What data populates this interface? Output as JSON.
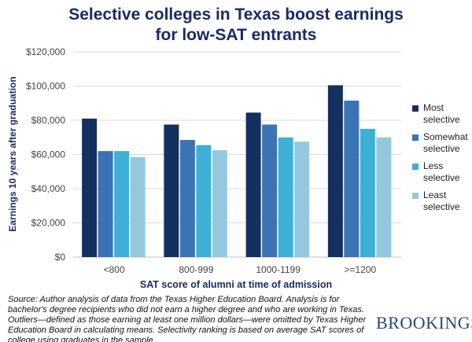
{
  "chart_data": {
    "type": "bar",
    "title": "Selective colleges in Texas boost earnings for low-SAT entrants",
    "y_label": "Earnings 10 years after graduation",
    "x_label": "SAT score of alumni at time of admission",
    "categories": [
      "<800",
      "800-999",
      "1000-1199",
      ">=1200"
    ],
    "series": [
      {
        "name": "Most selective",
        "color": "#14305f",
        "values": [
          81000,
          77500,
          84500,
          100500
        ]
      },
      {
        "name": "Somewhat selective",
        "color": "#3b73b5",
        "values": [
          62000,
          68500,
          77500,
          91500
        ]
      },
      {
        "name": "Less selective",
        "color": "#3eafd5",
        "values": [
          62000,
          65500,
          70000,
          75000
        ]
      },
      {
        "name": "Least selective",
        "color": "#93c8df",
        "values": [
          58500,
          62500,
          67500,
          70000
        ]
      }
    ],
    "ylim": [
      0,
      120000
    ],
    "yticks": [
      {
        "value": 0,
        "label": "$0"
      },
      {
        "value": 20000,
        "label": "$20,000"
      },
      {
        "value": 40000,
        "label": "$40,000"
      },
      {
        "value": 60000,
        "label": "$60,000"
      },
      {
        "value": 80000,
        "label": "$80,000"
      },
      {
        "value": 100000,
        "label": "$100,000"
      },
      {
        "value": 120000,
        "label": "$120,000"
      }
    ],
    "grid": true,
    "legend": "right",
    "source": "Source: Author analysis of data from the Texas Higher Education Board. Analysis is for bachelor's degree recipients who did not earn a higher degree and who are working in Texas. Outliers—defined as those earning at least one million dollars—were omitted by Texas Higher Education Board in calculating means. Selectivity ranking is based on average SAT scores of college using graduates in the sample.",
    "logo": "BROOKINGS"
  }
}
